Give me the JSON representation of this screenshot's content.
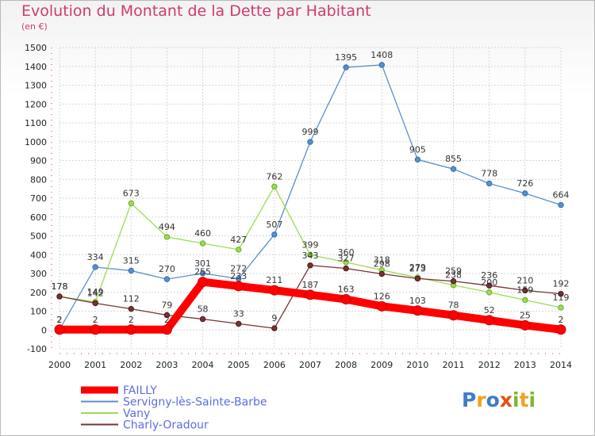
{
  "header": {
    "title": "Evolution du Montant de la Dette par Habitant",
    "subtitle": "(en €)"
  },
  "chart_data": {
    "type": "line",
    "title": "Evolution du Montant de la Dette par Habitant",
    "subtitle": "(en €)",
    "x": [
      2000,
      2001,
      2002,
      2003,
      2004,
      2005,
      2006,
      2007,
      2008,
      2009,
      2010,
      2011,
      2012,
      2013,
      2014
    ],
    "ylim": [
      -100,
      1500
    ],
    "yticks": [
      -100,
      0,
      100,
      200,
      300,
      400,
      500,
      600,
      700,
      800,
      900,
      1000,
      1100,
      1200,
      1300,
      1400,
      1500
    ],
    "grid": true,
    "legend_position": "bottom-left",
    "series": [
      {
        "name": "FAILLY",
        "color": "#ff0000",
        "values": [
          2,
          2,
          2,
          2,
          255,
          233,
          211,
          187,
          163,
          126,
          103,
          78,
          52,
          25,
          2
        ]
      },
      {
        "name": "Servigny-lès-Sainte-Barbe",
        "color": "#5b8fc9",
        "values": [
          2,
          334,
          315,
          270,
          301,
          272,
          507,
          999,
          1395,
          1408,
          905,
          855,
          778,
          726,
          664
        ]
      },
      {
        "name": "Vany",
        "color": "#99dd55",
        "values": [
          178,
          149,
          673,
          494,
          460,
          427,
          762,
          399,
          360,
          318,
          279,
          238,
          200,
          159,
          119
        ]
      },
      {
        "name": "Charly-Oradour",
        "color": "#773333",
        "values": [
          178,
          142,
          112,
          79,
          58,
          33,
          9,
          343,
          327,
          298,
          273,
          259,
          236,
          210,
          192
        ]
      }
    ]
  },
  "logo": {
    "letters": [
      "P",
      "r",
      "o",
      "x",
      "i",
      "t",
      "i"
    ]
  }
}
